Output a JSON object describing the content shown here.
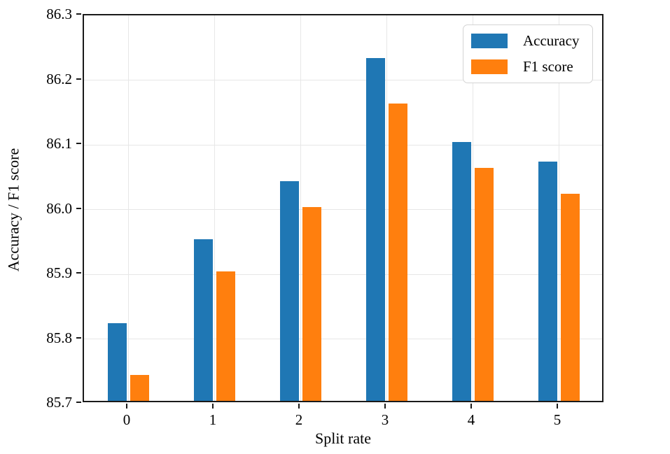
{
  "chart_data": {
    "type": "bar",
    "title": "",
    "xlabel": "Split rate",
    "ylabel": "Accuracy / F1 score",
    "categories": [
      "0",
      "1",
      "2",
      "3",
      "4",
      "5"
    ],
    "series": [
      {
        "name": "Accuracy",
        "color": "#1f77b4",
        "values": [
          85.82,
          85.95,
          86.04,
          86.23,
          86.1,
          86.07
        ]
      },
      {
        "name": "F1 score",
        "color": "#ff7f0e",
        "values": [
          85.74,
          85.9,
          86.0,
          86.16,
          86.06,
          86.02
        ]
      }
    ],
    "ylim": [
      85.7,
      86.3
    ],
    "yticks": [
      "85.7",
      "85.8",
      "85.9",
      "86.0",
      "86.1",
      "86.2",
      "86.3"
    ],
    "grid": true,
    "legend_position": "upper right"
  }
}
